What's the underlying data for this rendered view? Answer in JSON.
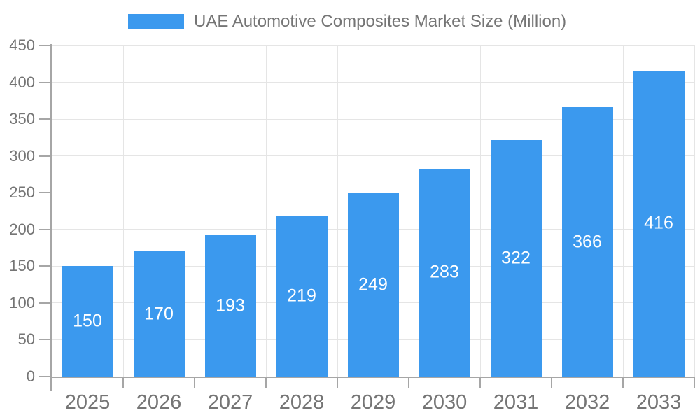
{
  "chart_data": {
    "type": "bar",
    "title": "UAE Automotive Composites Market Size (Million)",
    "legend": [
      {
        "label": "UAE Automotive Composites Market Size (Million)",
        "color": "#3B99EE"
      }
    ],
    "legend_position": "top-center",
    "categories": [
      "2025",
      "2026",
      "2027",
      "2028",
      "2029",
      "2030",
      "2031",
      "2032",
      "2033"
    ],
    "series": [
      {
        "name": "UAE Automotive Composites Market Size (Million)",
        "values": [
          150,
          170,
          193,
          219,
          249,
          283,
          322,
          366,
          416
        ]
      }
    ],
    "xlabel": "",
    "ylabel": "",
    "ylim": [
      0,
      450
    ],
    "yticks": [
      0,
      50,
      100,
      150,
      200,
      250,
      300,
      350,
      400,
      450
    ],
    "grid": "horizontal and vertical light gridlines",
    "value_labels_position": "inside-center"
  },
  "colors": {
    "bar": "#3B99EE",
    "text": "#757575",
    "value_label": "#ffffff",
    "gridline": "#e5e5e5",
    "axis": "#a6a6a6",
    "background": "#ffffff"
  }
}
